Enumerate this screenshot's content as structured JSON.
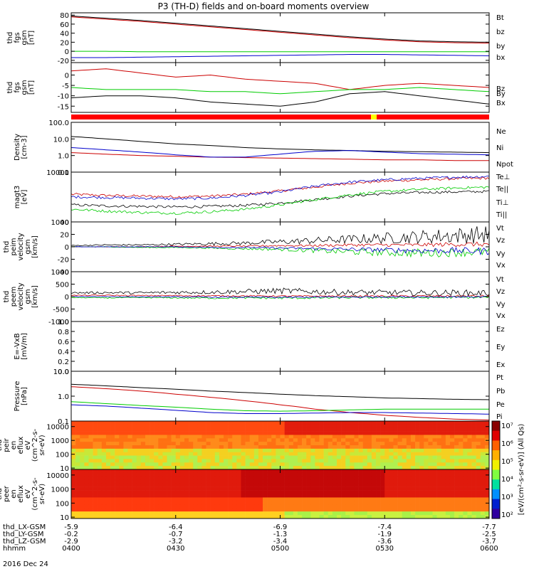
{
  "chart_data": {
    "type": "line",
    "title": "P3 (TH-D) fields and on-board moments overview",
    "date": "2016 Dec 24",
    "time_ticks": [
      "0400",
      "0430",
      "0500",
      "0530",
      "0600"
    ],
    "ephemeris": [
      {
        "label": "thd_LX-GSM",
        "values": [
          "-5.9",
          "-6.4",
          "-6.9",
          "-7.4",
          "-7.7"
        ]
      },
      {
        "label": "thd_LY-GSM",
        "values": [
          "-0.2",
          "-0.7",
          "-1.3",
          "-1.9",
          "-2.5"
        ]
      },
      {
        "label": "thd_LZ-GSM",
        "values": [
          "-2.9",
          "-3.2",
          "-3.4",
          "-3.6",
          "-3.7"
        ]
      },
      {
        "label": "hhmm",
        "values": [
          "0400",
          "0430",
          "0500",
          "0530",
          "0600"
        ]
      }
    ],
    "colorbar_ticks": [
      "10⁷",
      "10⁶",
      "10⁵",
      "10⁴",
      "10³",
      "10²"
    ],
    "colorbar_label": "[eV/(cm²-s-sr-eV)] (All Qs)",
    "panels": [
      {
        "id": "fgs-gsm",
        "type": "line",
        "ylabel": [
          "thd",
          "fgs",
          "gsm",
          "[nT]"
        ],
        "yscale": "linear",
        "ylim": [
          -25,
          85
        ],
        "yticks": [
          "80",
          "60",
          "40",
          "20",
          "0",
          "-20"
        ],
        "series": [
          {
            "name": "Bt",
            "color": "#000000",
            "values": [
              78,
              73,
              68,
              62,
              56,
              50,
              44,
              38,
              32,
              27,
              23,
              21,
              20
            ]
          },
          {
            "name": "bz",
            "color": "#cc0000",
            "values": [
              76,
              71,
              66,
              60,
              54,
              48,
              42,
              36,
              30,
              25,
              21,
              19,
              18
            ]
          },
          {
            "name": "by",
            "color": "#00cc00",
            "values": [
              0,
              0,
              -1,
              -1,
              -1,
              -1,
              -1,
              -1,
              -1,
              -1,
              -1,
              -1,
              -1
            ]
          },
          {
            "name": "bx",
            "color": "#0000cc",
            "values": [
              -14,
              -14,
              -13,
              -12,
              -11,
              -10,
              -9,
              -8,
              -7,
              -7,
              -8,
              -9,
              -10
            ]
          }
        ]
      },
      {
        "id": "fgs-dsl",
        "type": "line",
        "ylabel": [
          "thd",
          "fgs",
          "gsm",
          "[nT]"
        ],
        "yscale": "linear",
        "ylim": [
          -18,
          6
        ],
        "yticks": [
          "0",
          "-5",
          "-10",
          "-15"
        ],
        "series": [
          {
            "name": "Bz",
            "color": "#cc0000",
            "values": [
              2,
              3,
              1,
              -1,
              0,
              -2,
              -3,
              -4,
              -7,
              -5,
              -4,
              -5,
              -6
            ]
          },
          {
            "name": "By",
            "color": "#00cc00",
            "values": [
              -6,
              -7,
              -7,
              -7,
              -8,
              -8,
              -9,
              -8,
              -7,
              -7,
              -6,
              -7,
              -8
            ]
          },
          {
            "name": "Bx",
            "color": "#000000",
            "values": [
              -11,
              -10,
              -10,
              -11,
              -13,
              -14,
              -15,
              -13,
              -9,
              -8,
              -10,
              -12,
              -14
            ]
          }
        ]
      },
      {
        "id": "density",
        "type": "line",
        "ylabel": [
          "Density",
          "[cm-3]"
        ],
        "yscale": "log",
        "ylim": [
          0.1,
          100
        ],
        "yticks": [
          "100.0",
          "10.0",
          "1.0",
          "0.1"
        ],
        "series": [
          {
            "name": "Ne",
            "color": "#cc0000",
            "values": [
              1.5,
              1.2,
              1.0,
              0.9,
              0.8,
              0.75,
              0.7,
              0.65,
              0.6,
              0.55,
              0.55,
              0.5,
              0.5
            ]
          },
          {
            "name": "Ni",
            "color": "#000000",
            "values": [
              14,
              10,
              7,
              5,
              4,
              3,
              2.5,
              2.2,
              2.0,
              1.8,
              1.7,
              1.6,
              1.5
            ]
          },
          {
            "name": "Npot",
            "color": "#0000cc",
            "values": [
              3,
              2.2,
              1.6,
              1.1,
              0.8,
              0.8,
              1.2,
              1.8,
              2.0,
              1.6,
              1.3,
              1.2,
              1.1
            ]
          }
        ]
      },
      {
        "id": "magt3",
        "type": "line",
        "ylabel": [
          "magt3",
          "[eV]"
        ],
        "yscale": "log",
        "ylim": [
          1000,
          10000
        ],
        "yticks": [
          "10000",
          "1000"
        ],
        "series": [
          {
            "name": "Te⊥",
            "color": "#cc0000",
            "values": [
              3600,
              3400,
              3300,
              3200,
              3300,
              3600,
              4200,
              5000,
              6000,
              6600,
              7000,
              7400,
              7600
            ]
          },
          {
            "name": "Te||",
            "color": "#000000",
            "values": [
              2200,
              2100,
              2050,
              2000,
              2050,
              2150,
              2400,
              2800,
              3300,
              3700,
              3900,
              4000,
              4100
            ]
          },
          {
            "name": "Ti⊥",
            "color": "#0000cc",
            "values": [
              3200,
              3100,
              3000,
              2900,
              3000,
              3400,
              4000,
              5200,
              6300,
              7000,
              7500,
              7900,
              8200
            ]
          },
          {
            "name": "Ti||",
            "color": "#00cc00",
            "values": [
              1800,
              1650,
              1550,
              1500,
              1600,
              1800,
              2200,
              2800,
              3500,
              4100,
              4500,
              4800,
              5000
            ]
          }
        ]
      },
      {
        "id": "peim-velocity",
        "type": "line",
        "ylabel": [
          "thd",
          "peim",
          "velocity",
          "gsm",
          "[km/s]"
        ],
        "yscale": "linear",
        "ylim": [
          -40,
          40
        ],
        "yticks": [
          "40",
          "20",
          "0",
          "-20",
          "-40"
        ],
        "series": [
          {
            "name": "Vt",
            "color": "#000000",
            "values": [
              2,
              3,
              3,
              4,
              5,
              6,
              8,
              10,
              12,
              14,
              16,
              18,
              20
            ]
          },
          {
            "name": "Vz",
            "color": "#cc0000",
            "values": [
              0,
              0,
              0,
              1,
              1,
              1,
              2,
              2,
              3,
              3,
              3,
              4,
              4
            ]
          },
          {
            "name": "Vy",
            "color": "#00cc00",
            "values": [
              0,
              0,
              -1,
              -1,
              -2,
              -3,
              -4,
              -6,
              -8,
              -9,
              -10,
              -9,
              -8
            ]
          },
          {
            "name": "Vx",
            "color": "#0000cc",
            "values": [
              0,
              0,
              0,
              0,
              -1,
              -1,
              -2,
              -3,
              -4,
              -5,
              -6,
              -6,
              -7
            ]
          }
        ]
      },
      {
        "id": "peem-velocity",
        "type": "line",
        "ylabel": [
          "thd",
          "peem",
          "velocity",
          "gsm",
          "[km/s]"
        ],
        "yscale": "linear",
        "ylim": [
          -1000,
          1000
        ],
        "yticks": [
          "1000",
          "500",
          "0",
          "-500",
          "-1000"
        ],
        "series": [
          {
            "name": "Vt",
            "color": "#000000",
            "values": [
              150,
              160,
              150,
              170,
              180,
              200,
              230,
              200,
              170,
              160,
              150,
              150,
              140
            ]
          },
          {
            "name": "Vz",
            "color": "#cc0000",
            "values": [
              50,
              50,
              40,
              40,
              30,
              30,
              20,
              20,
              20,
              20,
              20,
              20,
              20
            ]
          },
          {
            "name": "Vy",
            "color": "#00cc00",
            "values": [
              -40,
              -50,
              -40,
              -50,
              -60,
              -50,
              -60,
              -50,
              -40,
              -40,
              -40,
              -30,
              -30
            ]
          },
          {
            "name": "Vx",
            "color": "#0000cc",
            "values": [
              0,
              0,
              -10,
              -10,
              -20,
              -20,
              -30,
              -20,
              -20,
              -10,
              -10,
              -10,
              -10
            ]
          }
        ]
      },
      {
        "id": "efield",
        "type": "line",
        "ylabel": [
          "E=-VxB",
          "[mV/m]"
        ],
        "yscale": "linear",
        "ylim": [
          0,
          1
        ],
        "yticks": [
          "1.0",
          "0.8",
          "0.6",
          "0.4",
          "0.2",
          "0.0"
        ],
        "series": [
          {
            "name": "Ez",
            "color": "#cc0000",
            "values": []
          },
          {
            "name": "Ey",
            "color": "#00cc00",
            "values": []
          },
          {
            "name": "Ex",
            "color": "#0000cc",
            "values": []
          }
        ]
      },
      {
        "id": "pressure",
        "type": "line",
        "ylabel": [
          "Pressure",
          "[nPa]"
        ],
        "yscale": "log",
        "ylim": [
          0.1,
          10
        ],
        "yticks": [
          "10.0",
          "1.0",
          "0.1"
        ],
        "series": [
          {
            "name": "Pt",
            "color": "#000000",
            "values": [
              3.0,
              2.6,
              2.2,
              1.9,
              1.6,
              1.4,
              1.2,
              1.05,
              0.95,
              0.85,
              0.8,
              0.75,
              0.72
            ]
          },
          {
            "name": "Pb",
            "color": "#cc0000",
            "values": [
              2.4,
              2.0,
              1.6,
              1.2,
              0.9,
              0.65,
              0.45,
              0.3,
              0.22,
              0.17,
              0.14,
              0.12,
              0.11
            ]
          },
          {
            "name": "Pe",
            "color": "#00cc00",
            "values": [
              0.6,
              0.5,
              0.42,
              0.36,
              0.3,
              0.26,
              0.25,
              0.26,
              0.28,
              0.3,
              0.3,
              0.3,
              0.3
            ]
          },
          {
            "name": "Pi",
            "color": "#0000cc",
            "values": [
              0.45,
              0.4,
              0.33,
              0.27,
              0.22,
              0.2,
              0.2,
              0.21,
              0.22,
              0.22,
              0.21,
              0.2,
              0.19
            ]
          }
        ]
      },
      {
        "id": "peir-spectrogram",
        "type": "heatmap",
        "ylabel": [
          "thd",
          "peir",
          "en",
          "eflux",
          "eV",
          "(cm^2-s-",
          "sr-eV)"
        ],
        "yscale": "log",
        "ylim": [
          8,
          25000
        ],
        "yticks": [
          "10000",
          "1000",
          "100",
          "10"
        ]
      },
      {
        "id": "peer-spectrogram",
        "type": "heatmap",
        "ylabel": [
          "thd",
          "peer",
          "en",
          "eflux",
          "eV",
          "(cm^2-s-",
          "sr-eV)"
        ],
        "yscale": "log",
        "ylim": [
          8,
          25000
        ],
        "yticks": [
          "10000",
          "1000",
          "100",
          "10"
        ]
      }
    ]
  }
}
